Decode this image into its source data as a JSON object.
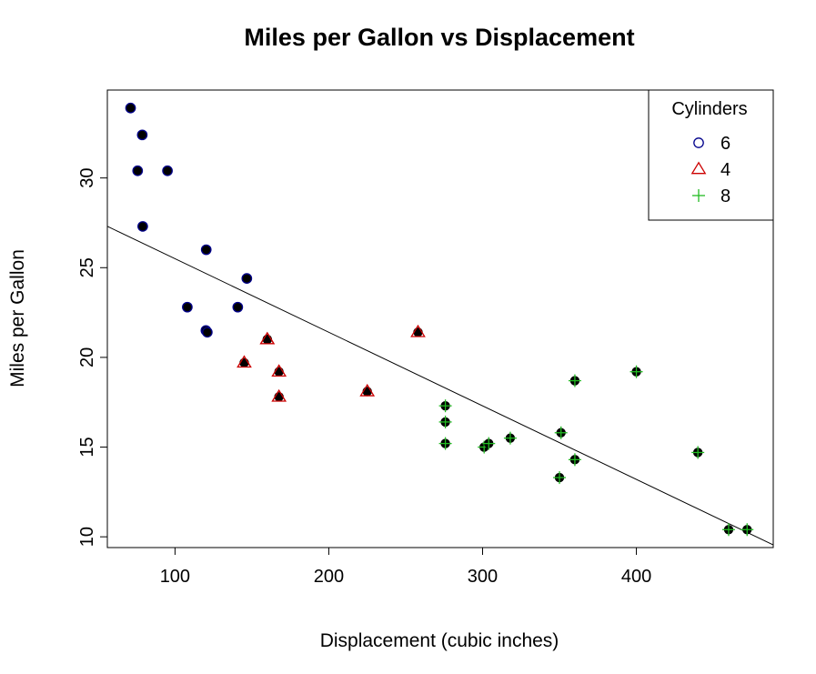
{
  "chart_data": {
    "type": "scatter",
    "title": "Miles per Gallon vs Displacement",
    "xlabel": "Displacement (cubic inches)",
    "ylabel": "Miles per Gallon",
    "xlim": [
      56,
      489
    ],
    "ylim": [
      9.4,
      34.9
    ],
    "x_ticks": [
      100,
      200,
      300,
      400
    ],
    "y_ticks": [
      10,
      15,
      20,
      25,
      30
    ],
    "grid": false,
    "legend": {
      "title": "Cylinders",
      "position": "top-right",
      "entries": [
        {
          "label": "6",
          "marker": "circle",
          "color": "#00008B"
        },
        {
          "label": "4",
          "marker": "triangle",
          "color": "#CC0000"
        },
        {
          "label": "8",
          "marker": "plus",
          "color": "#22BB22"
        }
      ]
    },
    "point_fill": "#000000",
    "series": [
      {
        "name": "6",
        "marker": "circle",
        "color": "#00008B",
        "points": [
          [
            71.1,
            33.9
          ],
          [
            78.7,
            32.4
          ],
          [
            75.7,
            30.4
          ],
          [
            95.1,
            30.4
          ],
          [
            79.0,
            27.3
          ],
          [
            120.3,
            26.0
          ],
          [
            146.7,
            24.4
          ],
          [
            108.0,
            22.8
          ],
          [
            140.8,
            22.8
          ],
          [
            120.1,
            21.5
          ],
          [
            121.0,
            21.4
          ]
        ]
      },
      {
        "name": "4",
        "marker": "triangle",
        "color": "#CC0000",
        "points": [
          [
            160.0,
            21.0
          ],
          [
            160.0,
            21.0
          ],
          [
            258.0,
            21.4
          ],
          [
            225.0,
            18.1
          ],
          [
            167.6,
            19.2
          ],
          [
            167.6,
            17.8
          ],
          [
            145.0,
            19.7
          ]
        ]
      },
      {
        "name": "8",
        "marker": "plus",
        "color": "#22BB22",
        "points": [
          [
            360.0,
            18.7
          ],
          [
            400.0,
            19.2
          ],
          [
            275.8,
            17.3
          ],
          [
            275.8,
            16.4
          ],
          [
            275.8,
            15.2
          ],
          [
            301.0,
            15.0
          ],
          [
            304.0,
            15.2
          ],
          [
            318.0,
            15.5
          ],
          [
            351.0,
            15.8
          ],
          [
            360.0,
            14.3
          ],
          [
            350.0,
            13.3
          ],
          [
            440.0,
            14.7
          ],
          [
            460.0,
            10.4
          ],
          [
            472.0,
            10.4
          ]
        ]
      }
    ],
    "regression_line": {
      "intercept": 29.6,
      "slope": -0.041
    },
    "x_ticks_text": [
      "100",
      "200",
      "300",
      "400"
    ],
    "y_ticks_text": [
      "10",
      "15",
      "20",
      "25",
      "30"
    ]
  }
}
